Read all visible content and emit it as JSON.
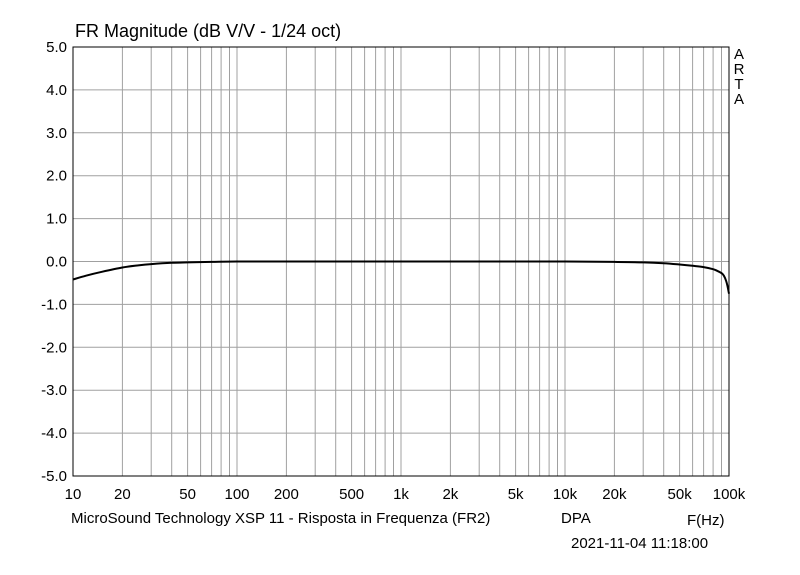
{
  "chart_data": {
    "type": "line",
    "title": "FR Magnitude (dB V/V - 1/24 oct)",
    "xlabel": "F(Hz)",
    "ylabel": "",
    "x_scale": "log",
    "xlim": [
      10,
      100000
    ],
    "ylim": [
      -5.0,
      5.0
    ],
    "grid": true,
    "legend": "none",
    "x_ticks": [
      {
        "value": 10,
        "label": "10"
      },
      {
        "value": 20,
        "label": "20"
      },
      {
        "value": 50,
        "label": "50"
      },
      {
        "value": 100,
        "label": "100"
      },
      {
        "value": 200,
        "label": "200"
      },
      {
        "value": 500,
        "label": "500"
      },
      {
        "value": 1000,
        "label": "1k"
      },
      {
        "value": 2000,
        "label": "2k"
      },
      {
        "value": 5000,
        "label": "5k"
      },
      {
        "value": 10000,
        "label": "10k"
      },
      {
        "value": 20000,
        "label": "20k"
      },
      {
        "value": 50000,
        "label": "50k"
      },
      {
        "value": 100000,
        "label": "100k"
      }
    ],
    "y_ticks": [
      {
        "value": 5,
        "label": "5.0"
      },
      {
        "value": 4,
        "label": "4.0"
      },
      {
        "value": 3,
        "label": "3.0"
      },
      {
        "value": 2,
        "label": "2.0"
      },
      {
        "value": 1,
        "label": "1.0"
      },
      {
        "value": 0,
        "label": "0.0"
      },
      {
        "value": -1,
        "label": "-1.0"
      },
      {
        "value": -2,
        "label": "-2.0"
      },
      {
        "value": -3,
        "label": "-3.0"
      },
      {
        "value": -4,
        "label": "-4.0"
      },
      {
        "value": -5,
        "label": "-5.0"
      }
    ],
    "series": [
      {
        "x": [
          10,
          12,
          15,
          20,
          25,
          30,
          40,
          50,
          70,
          100,
          200,
          500,
          1000,
          2000,
          5000,
          10000,
          20000,
          30000,
          40000,
          50000,
          60000,
          70000,
          80000,
          85000,
          90000,
          93000,
          96000,
          98000,
          100000
        ],
        "y": [
          -0.42,
          -0.33,
          -0.24,
          -0.14,
          -0.09,
          -0.06,
          -0.03,
          -0.02,
          -0.01,
          0.0,
          0.0,
          0.0,
          0.0,
          0.0,
          0.0,
          0.0,
          -0.01,
          -0.02,
          -0.04,
          -0.07,
          -0.1,
          -0.13,
          -0.18,
          -0.22,
          -0.27,
          -0.33,
          -0.45,
          -0.58,
          -0.75
        ]
      }
    ],
    "line_color": "#000000",
    "grid_color": "#a0a0a0"
  },
  "caption": "MicroSound Technology XSP 11 - Risposta in Frequenza (FR2)",
  "brand": "DPA",
  "timestamp": "2021-11-04  11:18:00",
  "watermark": "ARTA"
}
